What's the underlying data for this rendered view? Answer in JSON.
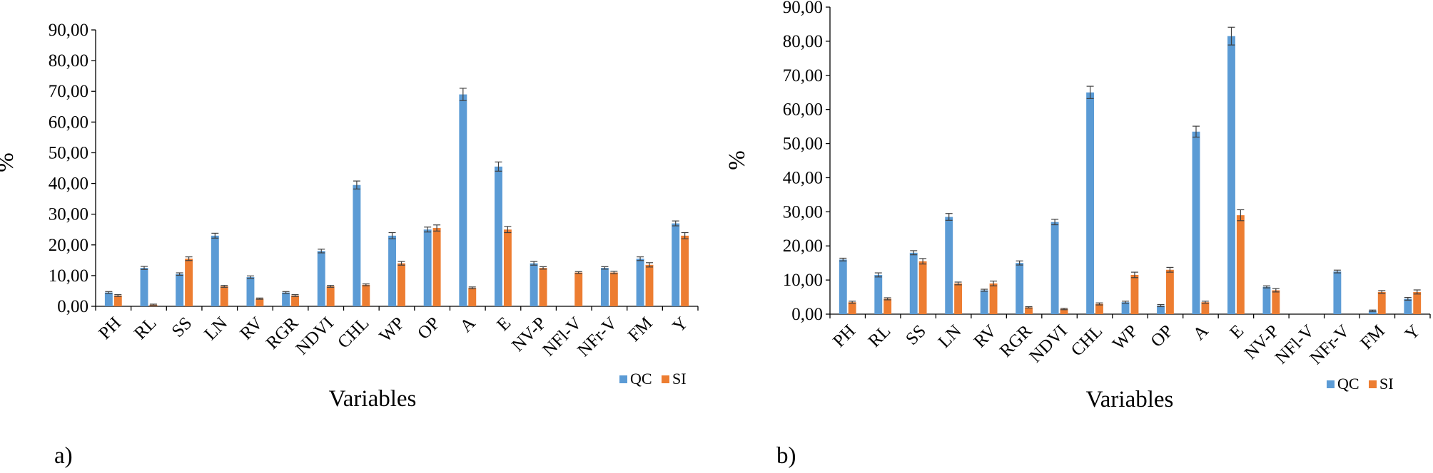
{
  "chart_data": [
    {
      "type": "bar",
      "panel_label": "a)",
      "xlabel": "Variables",
      "ylabel": "%",
      "ylim": [
        0,
        90
      ],
      "yticks": [
        "0,00",
        "10,00",
        "20,00",
        "30,00",
        "40,00",
        "50,00",
        "60,00",
        "70,00",
        "80,00",
        "90,00"
      ],
      "categories": [
        "PH",
        "RL",
        "SS",
        "LN",
        "RV",
        "RGR",
        "NDVI",
        "CHL",
        "WP",
        "OP",
        "A",
        "E",
        "NV-P",
        "NFl-V",
        "NFr-V",
        "FM",
        "Y"
      ],
      "series": [
        {
          "name": "QC",
          "color": "#5B9BD5",
          "values": [
            4.5,
            12.5,
            10.5,
            23.0,
            9.5,
            4.5,
            18.0,
            39.5,
            23.0,
            25.0,
            69.0,
            45.5,
            14.0,
            0.0,
            12.5,
            15.5,
            27.0
          ],
          "errors": [
            0.3,
            0.5,
            0.4,
            0.8,
            0.4,
            0.3,
            0.6,
            1.3,
            1.0,
            0.8,
            2.0,
            1.5,
            0.6,
            0.0,
            0.4,
            0.6,
            0.8
          ]
        },
        {
          "name": "SI",
          "color": "#ED7D31",
          "values": [
            3.5,
            0.5,
            15.5,
            6.5,
            2.5,
            3.5,
            6.5,
            7.0,
            14.0,
            25.5,
            6.0,
            25.0,
            12.5,
            11.0,
            11.0,
            13.5,
            23.0
          ],
          "errors": [
            0.3,
            0.2,
            0.6,
            0.3,
            0.2,
            0.3,
            0.3,
            0.3,
            0.6,
            1.0,
            0.3,
            1.0,
            0.4,
            0.3,
            0.4,
            0.7,
            1.0
          ]
        }
      ],
      "legend_position": "bottom-right"
    },
    {
      "type": "bar",
      "panel_label": "b)",
      "xlabel": "Variables",
      "ylabel": "%",
      "ylim": [
        0,
        90
      ],
      "yticks": [
        "0,00",
        "10,00",
        "20,00",
        "30,00",
        "40,00",
        "50,00",
        "60,00",
        "70,00",
        "80,00",
        "90,00"
      ],
      "categories": [
        "PH",
        "RL",
        "SS",
        "LN",
        "RV",
        "RGR",
        "NDVI",
        "CHL",
        "WP",
        "OP",
        "A",
        "E",
        "NV-P",
        "NFl-V",
        "NFr-V",
        "FM",
        "Y"
      ],
      "series": [
        {
          "name": "QC",
          "color": "#5B9BD5",
          "values": [
            16.0,
            11.5,
            18.0,
            28.5,
            7.0,
            15.0,
            27.0,
            65.0,
            3.5,
            2.5,
            53.5,
            81.5,
            8.0,
            0.0,
            12.5,
            1.0,
            4.5
          ],
          "errors": [
            0.4,
            0.6,
            0.6,
            1.0,
            0.3,
            0.6,
            0.8,
            1.8,
            0.3,
            0.3,
            1.6,
            2.6,
            0.3,
            0.0,
            0.4,
            0.2,
            0.4
          ]
        },
        {
          "name": "SI",
          "color": "#ED7D31",
          "values": [
            3.5,
            4.5,
            15.5,
            9.0,
            9.0,
            2.0,
            1.5,
            3.0,
            11.5,
            13.0,
            3.5,
            29.0,
            7.0,
            0.0,
            0.0,
            6.5,
            6.5
          ],
          "errors": [
            0.3,
            0.3,
            0.8,
            0.4,
            0.7,
            0.2,
            0.2,
            0.3,
            0.8,
            0.7,
            0.3,
            1.6,
            0.5,
            0.0,
            0.0,
            0.4,
            0.6
          ]
        }
      ],
      "legend_position": "bottom-right"
    }
  ]
}
